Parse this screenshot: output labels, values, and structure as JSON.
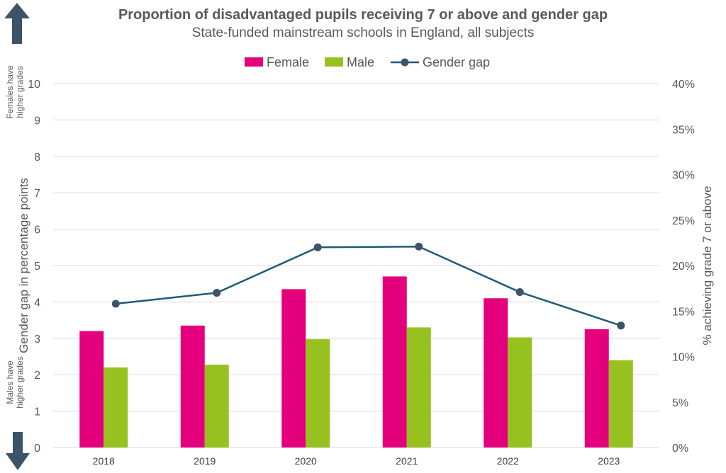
{
  "colors": {
    "female": "#e4007c",
    "male": "#97c11f",
    "gap": "#1f5a7a",
    "marker": "#3d5468",
    "arrow": "#3d5468",
    "grid": "#d9d9d9",
    "text": "#595959"
  },
  "side_notes": {
    "top": [
      "Females have",
      "higher grades"
    ],
    "bottom": [
      "Males have",
      "higher grades"
    ]
  },
  "chart_data": {
    "type": "bar",
    "title": "Proportion of disadvantaged pupils receiving 7 or above and gender gap",
    "subtitle": "State-funded mainstream schools in England, all subjects",
    "categories": [
      "2018",
      "2019",
      "2020",
      "2021",
      "2022",
      "2023"
    ],
    "series": [
      {
        "name": "Female",
        "type": "bar",
        "axis": "right",
        "values": [
          12.8,
          13.4,
          17.4,
          18.8,
          16.4,
          13.0
        ]
      },
      {
        "name": "Male",
        "type": "bar",
        "axis": "right",
        "values": [
          8.8,
          9.1,
          11.9,
          13.2,
          12.1,
          9.6
        ]
      },
      {
        "name": "Gender gap",
        "type": "line",
        "axis": "left",
        "values": [
          3.95,
          4.25,
          5.5,
          5.52,
          4.27,
          3.35
        ]
      }
    ],
    "ylabel": "Gender gap in percentage points",
    "ylim": [
      0,
      10
    ],
    "yticks": [
      "0",
      "1",
      "2",
      "3",
      "4",
      "5",
      "6",
      "7",
      "8",
      "9",
      "10"
    ],
    "y2label": "% achieving grade 7 or above",
    "y2lim": [
      0,
      40
    ],
    "y2ticks": [
      "0%",
      "5%",
      "10%",
      "15%",
      "20%",
      "25%",
      "30%",
      "35%",
      "40%"
    ],
    "legend_position": "top",
    "grid": true
  }
}
